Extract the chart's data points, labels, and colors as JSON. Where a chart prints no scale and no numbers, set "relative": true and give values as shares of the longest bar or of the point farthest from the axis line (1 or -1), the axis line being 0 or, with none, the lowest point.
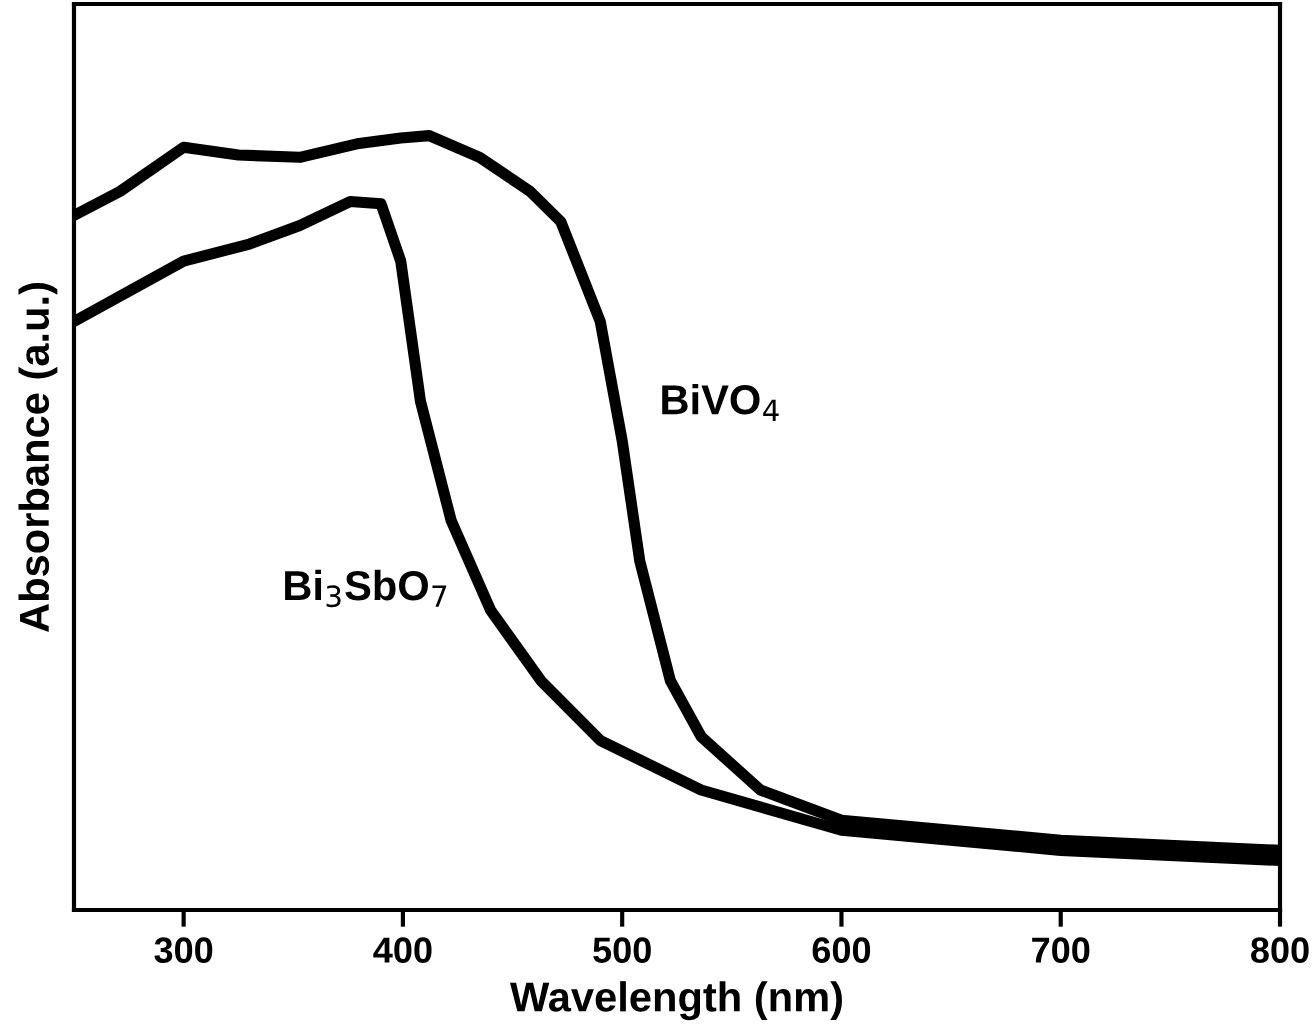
{
  "chart_data": {
    "type": "line",
    "relative": true,
    "xlabel": "Wavelength (nm)",
    "ylabel": "Absorbance (a.u.)",
    "xlim": [
      250,
      800
    ],
    "xticks": [
      300,
      400,
      500,
      600,
      700,
      800
    ],
    "grid": false,
    "legend": false,
    "marker": "none",
    "line_style": "solid",
    "series": [
      {
        "name": "BiVO$_{4}$",
        "color": "#000000",
        "x": [
          250,
          271,
          300,
          325,
          353,
          380,
          399,
          412,
          435,
          458,
          472,
          490,
          500,
          508,
          522,
          536,
          563,
          600,
          700,
          800
        ],
        "values": [
          0.897,
          0.928,
          0.985,
          0.975,
          0.972,
          0.99,
          0.997,
          1.0,
          0.972,
          0.928,
          0.889,
          0.76,
          0.606,
          0.451,
          0.296,
          0.224,
          0.155,
          0.116,
          0.09,
          0.077
        ]
      },
      {
        "name": "Bi$_{3}$SbO$_{7}$",
        "color": "#000000",
        "x": [
          250,
          300,
          330,
          353,
          376,
          390,
          399,
          408,
          422,
          440,
          463,
          490,
          536,
          600,
          700,
          800
        ],
        "values": [
          0.76,
          0.838,
          0.86,
          0.884,
          0.915,
          0.912,
          0.838,
          0.657,
          0.503,
          0.387,
          0.296,
          0.219,
          0.155,
          0.103,
          0.077,
          0.064
        ]
      }
    ]
  }
}
